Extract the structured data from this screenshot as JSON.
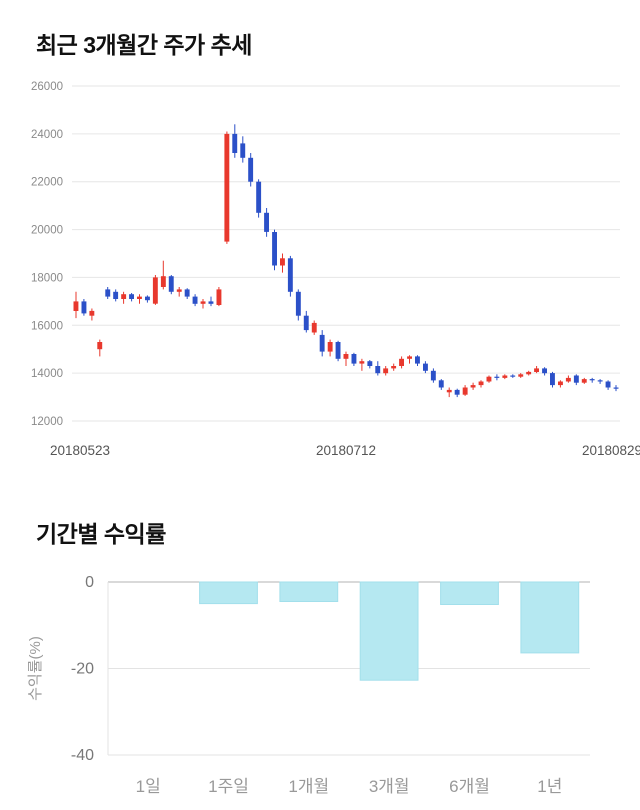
{
  "price_section": {
    "title": "최근 3개월간 주가 추세"
  },
  "returns_section": {
    "title": "기간별 수익률"
  },
  "chart_data": [
    {
      "type": "candlestick",
      "title": "최근 3개월간 주가 추세",
      "ylim": [
        12000,
        26000
      ],
      "y_ticks": [
        26000,
        24000,
        22000,
        20000,
        18000,
        16000,
        14000,
        12000
      ],
      "x_tick_labels": [
        "20180523",
        "20180712",
        "20180829"
      ],
      "up_color": "#e8382d",
      "down_color": "#2b50c8",
      "grid": true,
      "legend": "none",
      "candles": [
        [
          16600,
          17400,
          16300,
          17000
        ],
        [
          17000,
          17100,
          16400,
          16500
        ],
        [
          16400,
          16700,
          16200,
          16600
        ],
        [
          15000,
          15400,
          14700,
          15300
        ],
        [
          17500,
          17600,
          17100,
          17200
        ],
        [
          17400,
          17500,
          17000,
          17100
        ],
        [
          17100,
          17400,
          16900,
          17300
        ],
        [
          17300,
          17350,
          17000,
          17100
        ],
        [
          17100,
          17300,
          16900,
          17200
        ],
        [
          17200,
          17250,
          16950,
          17050
        ],
        [
          16900,
          18100,
          16850,
          18000
        ],
        [
          17600,
          18700,
          17500,
          18050
        ],
        [
          18050,
          18100,
          17300,
          17400
        ],
        [
          17400,
          17600,
          17200,
          17500
        ],
        [
          17500,
          17550,
          17100,
          17200
        ],
        [
          17200,
          17300,
          16800,
          16900
        ],
        [
          16900,
          17100,
          16700,
          17000
        ],
        [
          17000,
          17200,
          16800,
          16900
        ],
        [
          16850,
          17600,
          16800,
          17500
        ],
        [
          19500,
          24100,
          19400,
          24000
        ],
        [
          24000,
          24400,
          23000,
          23200
        ],
        [
          23600,
          23900,
          22800,
          23000
        ],
        [
          23000,
          23200,
          21800,
          22000
        ],
        [
          22000,
          22100,
          20500,
          20700
        ],
        [
          20700,
          20900,
          19700,
          19900
        ],
        [
          19900,
          20000,
          18300,
          18500
        ],
        [
          18500,
          19000,
          18200,
          18800
        ],
        [
          18800,
          18900,
          17200,
          17400
        ],
        [
          17400,
          17500,
          16200,
          16400
        ],
        [
          16400,
          16600,
          15700,
          15800
        ],
        [
          15700,
          16200,
          15600,
          16100
        ],
        [
          15600,
          15800,
          14700,
          14900
        ],
        [
          14900,
          15400,
          14700,
          15300
        ],
        [
          15300,
          15350,
          14500,
          14600
        ],
        [
          14600,
          14900,
          14300,
          14800
        ],
        [
          14800,
          14850,
          14300,
          14400
        ],
        [
          14400,
          14600,
          14100,
          14500
        ],
        [
          14500,
          14550,
          14200,
          14300
        ],
        [
          14300,
          14500,
          13900,
          14000
        ],
        [
          14000,
          14300,
          13900,
          14200
        ],
        [
          14200,
          14400,
          14100,
          14300
        ],
        [
          14300,
          14700,
          14200,
          14600
        ],
        [
          14600,
          14750,
          14400,
          14700
        ],
        [
          14700,
          14750,
          14300,
          14400
        ],
        [
          14400,
          14500,
          14000,
          14100
        ],
        [
          14100,
          14200,
          13600,
          13700
        ],
        [
          13700,
          13750,
          13300,
          13400
        ],
        [
          13200,
          13400,
          13000,
          13300
        ],
        [
          13300,
          13350,
          13000,
          13100
        ],
        [
          13100,
          13500,
          13050,
          13400
        ],
        [
          13400,
          13600,
          13300,
          13500
        ],
        [
          13500,
          13700,
          13400,
          13650
        ],
        [
          13650,
          13900,
          13600,
          13850
        ],
        [
          13850,
          13950,
          13700,
          13800
        ],
        [
          13800,
          13950,
          13750,
          13900
        ],
        [
          13900,
          13950,
          13800,
          13850
        ],
        [
          13850,
          14000,
          13800,
          13950
        ],
        [
          13950,
          14100,
          13900,
          14050
        ],
        [
          14050,
          14300,
          14000,
          14200
        ],
        [
          14200,
          14250,
          13900,
          14000
        ],
        [
          14000,
          14050,
          13400,
          13500
        ],
        [
          13500,
          13700,
          13400,
          13650
        ],
        [
          13650,
          13900,
          13600,
          13800
        ],
        [
          13900,
          13950,
          13500,
          13600
        ],
        [
          13600,
          13800,
          13550,
          13750
        ],
        [
          13750,
          13800,
          13600,
          13700
        ],
        [
          13700,
          13750,
          13550,
          13650
        ],
        [
          13650,
          13700,
          13300,
          13400
        ],
        [
          13400,
          13500,
          13250,
          13350
        ]
      ]
    },
    {
      "type": "bar",
      "title": "기간별 수익률",
      "categories": [
        "1일",
        "1주일",
        "1개월",
        "3개월",
        "6개월",
        "1년"
      ],
      "values": [
        0,
        -5,
        -4.5,
        -22.7,
        -5.2,
        -16.4
      ],
      "ylabel": "수익률(%)",
      "ylim": [
        -40,
        0
      ],
      "y_ticks": [
        0,
        -20,
        -40
      ],
      "bar_color": "#b5e8f1",
      "bar_edge_color": "#a2dfeb",
      "grid": true,
      "legend": "none"
    }
  ]
}
